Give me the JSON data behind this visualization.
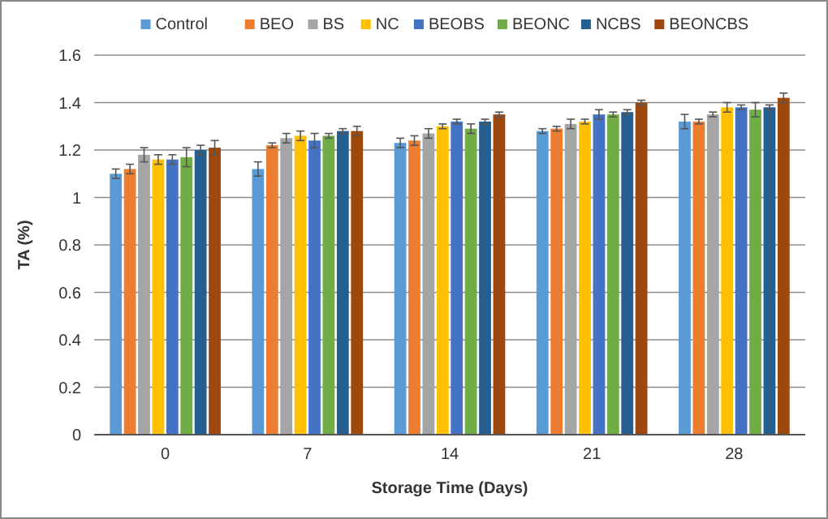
{
  "chart_data": {
    "type": "bar",
    "xlabel": "Storage Time (Days)",
    "ylabel": "TA (%)",
    "categories": [
      "0",
      "7",
      "14",
      "21",
      "28"
    ],
    "ylim": [
      0,
      1.6
    ],
    "yticks": [
      0,
      0.2,
      0.4,
      0.6,
      0.8,
      1,
      1.2,
      1.4,
      1.6
    ],
    "grid": "y",
    "legend": "top",
    "series": [
      {
        "name": "Control",
        "color": "#5b9bd5",
        "values": [
          1.1,
          1.12,
          1.23,
          1.28,
          1.32
        ],
        "errors": [
          0.02,
          0.03,
          0.02,
          0.01,
          0.03
        ]
      },
      {
        "name": "BEO",
        "color": "#ed7d31",
        "values": [
          1.12,
          1.22,
          1.24,
          1.29,
          1.32
        ],
        "errors": [
          0.02,
          0.01,
          0.02,
          0.01,
          0.01
        ]
      },
      {
        "name": "BS",
        "color": "#a5a5a5",
        "values": [
          1.18,
          1.25,
          1.27,
          1.31,
          1.35
        ],
        "errors": [
          0.03,
          0.02,
          0.02,
          0.02,
          0.01
        ]
      },
      {
        "name": "NC",
        "color": "#ffc000",
        "values": [
          1.16,
          1.26,
          1.3,
          1.32,
          1.38
        ],
        "errors": [
          0.02,
          0.02,
          0.01,
          0.01,
          0.02
        ]
      },
      {
        "name": "BEOBS",
        "color": "#4472c4",
        "values": [
          1.16,
          1.24,
          1.32,
          1.35,
          1.38
        ],
        "errors": [
          0.02,
          0.03,
          0.01,
          0.02,
          0.01
        ]
      },
      {
        "name": "BEONC",
        "color": "#70ad47",
        "values": [
          1.17,
          1.26,
          1.29,
          1.35,
          1.37
        ],
        "errors": [
          0.04,
          0.01,
          0.02,
          0.01,
          0.03
        ]
      },
      {
        "name": "NCBS",
        "color": "#255e91",
        "values": [
          1.2,
          1.28,
          1.32,
          1.36,
          1.38
        ],
        "errors": [
          0.02,
          0.01,
          0.01,
          0.01,
          0.01
        ]
      },
      {
        "name": "BEONCBS",
        "color": "#9e480e",
        "values": [
          1.21,
          1.28,
          1.35,
          1.4,
          1.42
        ],
        "errors": [
          0.03,
          0.02,
          0.01,
          0.01,
          0.02
        ]
      }
    ]
  }
}
